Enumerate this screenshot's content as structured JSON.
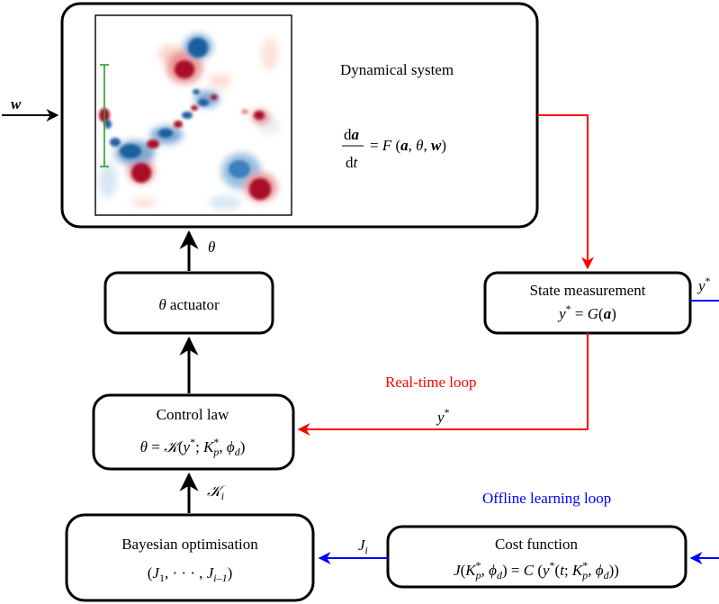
{
  "colors": {
    "realtime": "#ff0000",
    "offline": "#0000ff",
    "actuator_bar": "#2ca02c",
    "vortex_red": "#a80f2a",
    "vortex_blue": "#1f5f9e"
  },
  "dynamical_system": {
    "title": "Dynamical system",
    "eq_num_d": "d",
    "eq_num_var": "a",
    "eq_den_d": "d",
    "eq_den_var": "t",
    "eq_eq": "=",
    "eq_F": "F",
    "eq_lp": "(",
    "eq_a": "a",
    "eq_c1": ",",
    "eq_theta": "θ",
    "eq_c2": ",",
    "eq_w": "w",
    "eq_rp": ")"
  },
  "input_w": "w",
  "theta_edge": "θ",
  "actuator": {
    "theta": "θ",
    "label": "actuator"
  },
  "state_measurement": {
    "title": "State measurement",
    "y": "y",
    "star": "*",
    "eq": "=",
    "G": "G",
    "lp": "(",
    "a": "a",
    "rp": ")"
  },
  "y_star_out": {
    "y": "y",
    "star": "*"
  },
  "realtime_loop": "Real-time loop",
  "y_star_rt": {
    "y": "y",
    "star": "*"
  },
  "control_law": {
    "title": "Control law",
    "theta": "θ",
    "eq": "=",
    "K": "𝒦",
    "lp": "(",
    "y": "y",
    "star": "*",
    "semi": ";",
    "Kp": "K",
    "p_sup": "*",
    "p_sub": "p",
    "comma": ",",
    "phi": "ϕ",
    "d_sub": "d",
    "rp": ")"
  },
  "K_i": {
    "K": "𝒦",
    "sub": "i"
  },
  "offline_loop": "Offline learning loop",
  "bayesian": {
    "title": "Bayesian optimisation",
    "lp": "(",
    "J1": "J",
    "one": "1",
    "dots": ", · · · ,",
    "Jn": "J",
    "sub": "i–1",
    "rp": ")"
  },
  "J_i": {
    "J": "J",
    "sub": "i"
  },
  "cost_function": {
    "title": "Cost function",
    "J": "J",
    "lp": "(",
    "Kp": "K",
    "p_sup": "*",
    "p_sub": "p",
    "comma": ",",
    "phi": "ϕ",
    "d_sub": "d",
    "rp": ")",
    "eq": "=",
    "C": "C",
    "lp2": "(",
    "y": "y",
    "star": "*",
    "lp3": "(",
    "t": "t",
    "semi": ";",
    "Kp2": "K",
    "p_sup2": "*",
    "p_sub2": "p",
    "comma2": ",",
    "phi2": "ϕ",
    "d_sub2": "d",
    "rp3": "))"
  }
}
